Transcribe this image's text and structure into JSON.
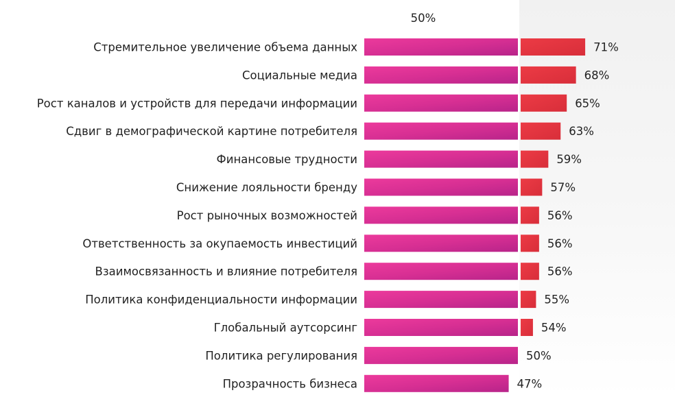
{
  "chart_data": {
    "type": "bar",
    "orientation": "horizontal",
    "reference_value": 50,
    "reference_label": "50%",
    "categories": [
      "Стремительное увеличение объема данных",
      "Социальные медиа",
      "Рост каналов и устройств для передачи информации",
      "Сдвиг в демографической картине потребителя",
      "Финансовые трудности",
      "Снижение лояльности бренду",
      "Рост рыночных возможностей",
      "Ответственность за окупаемость инвестиций",
      "Взаимосвязанность и влияние потребителя",
      "Политика конфиденциальности информации",
      "Глобальный аутсорсинг",
      "Политика регулирования",
      "Прозрачность бизнеса"
    ],
    "values": [
      71,
      68,
      65,
      63,
      59,
      57,
      56,
      56,
      56,
      55,
      54,
      50,
      47
    ],
    "value_labels": [
      "71%",
      "68%",
      "65%",
      "63%",
      "59%",
      "57%",
      "56%",
      "56%",
      "56%",
      "55%",
      "54%",
      "50%",
      "47%"
    ],
    "colors": {
      "below_reference": "#d42a8e",
      "above_reference": "#e5323f"
    }
  }
}
